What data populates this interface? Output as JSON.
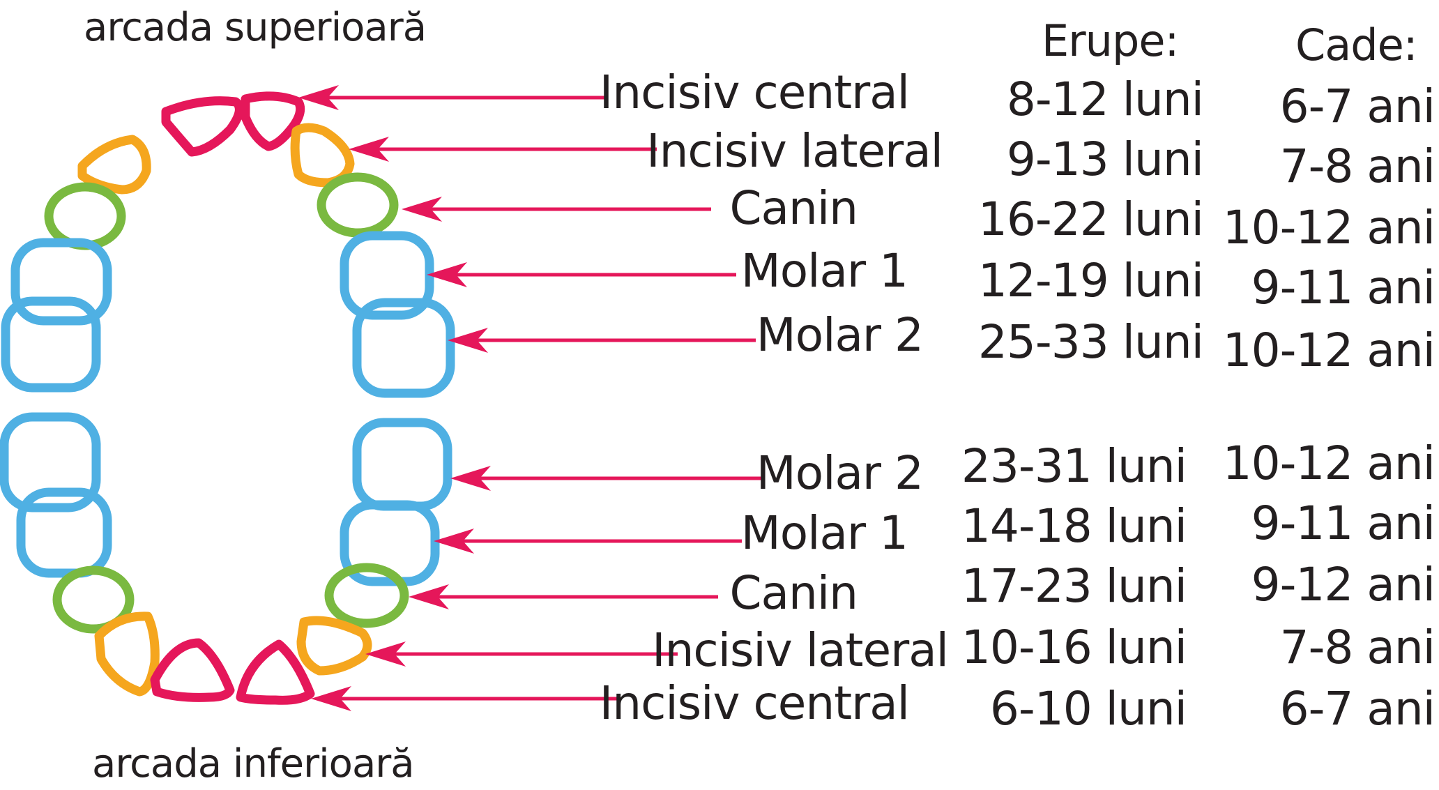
{
  "titles": {
    "upper_arch": "arcada superioară",
    "lower_arch": "arcada inferioară"
  },
  "headers": {
    "erupts": "Erupe:",
    "falls": "Cade:"
  },
  "colors": {
    "arrow": "#e5175a",
    "incisiv_central": "#e5175a",
    "incisiv_lateral": "#f5a61e",
    "canin": "#7ab940",
    "molar": "#4fb0e3",
    "text": "#231f20"
  },
  "upper": [
    {
      "tooth": "Incisiv central",
      "erupts": "8-12 luni",
      "falls": "6-7 ani"
    },
    {
      "tooth": "Incisiv lateral",
      "erupts": "9-13 luni",
      "falls": "7-8 ani"
    },
    {
      "tooth": "Canin",
      "erupts": "16-22 luni",
      "falls": "10-12 ani"
    },
    {
      "tooth": "Molar 1",
      "erupts": "12-19 luni",
      "falls": "9-11 ani"
    },
    {
      "tooth": "Molar 2",
      "erupts": "25-33 luni",
      "falls": "10-12 ani"
    }
  ],
  "lower": [
    {
      "tooth": "Molar 2",
      "erupts": "23-31 luni",
      "falls": "10-12 ani"
    },
    {
      "tooth": "Molar 1",
      "erupts": "14-18 luni",
      "falls": "9-11 ani"
    },
    {
      "tooth": "Canin",
      "erupts": "17-23 luni",
      "falls": "9-12 ani"
    },
    {
      "tooth": "Incisiv lateral",
      "erupts": "10-16 luni",
      "falls": "7-8 ani"
    },
    {
      "tooth": "Incisiv central",
      "erupts": "6-10 luni",
      "falls": "6-7 ani"
    }
  ]
}
